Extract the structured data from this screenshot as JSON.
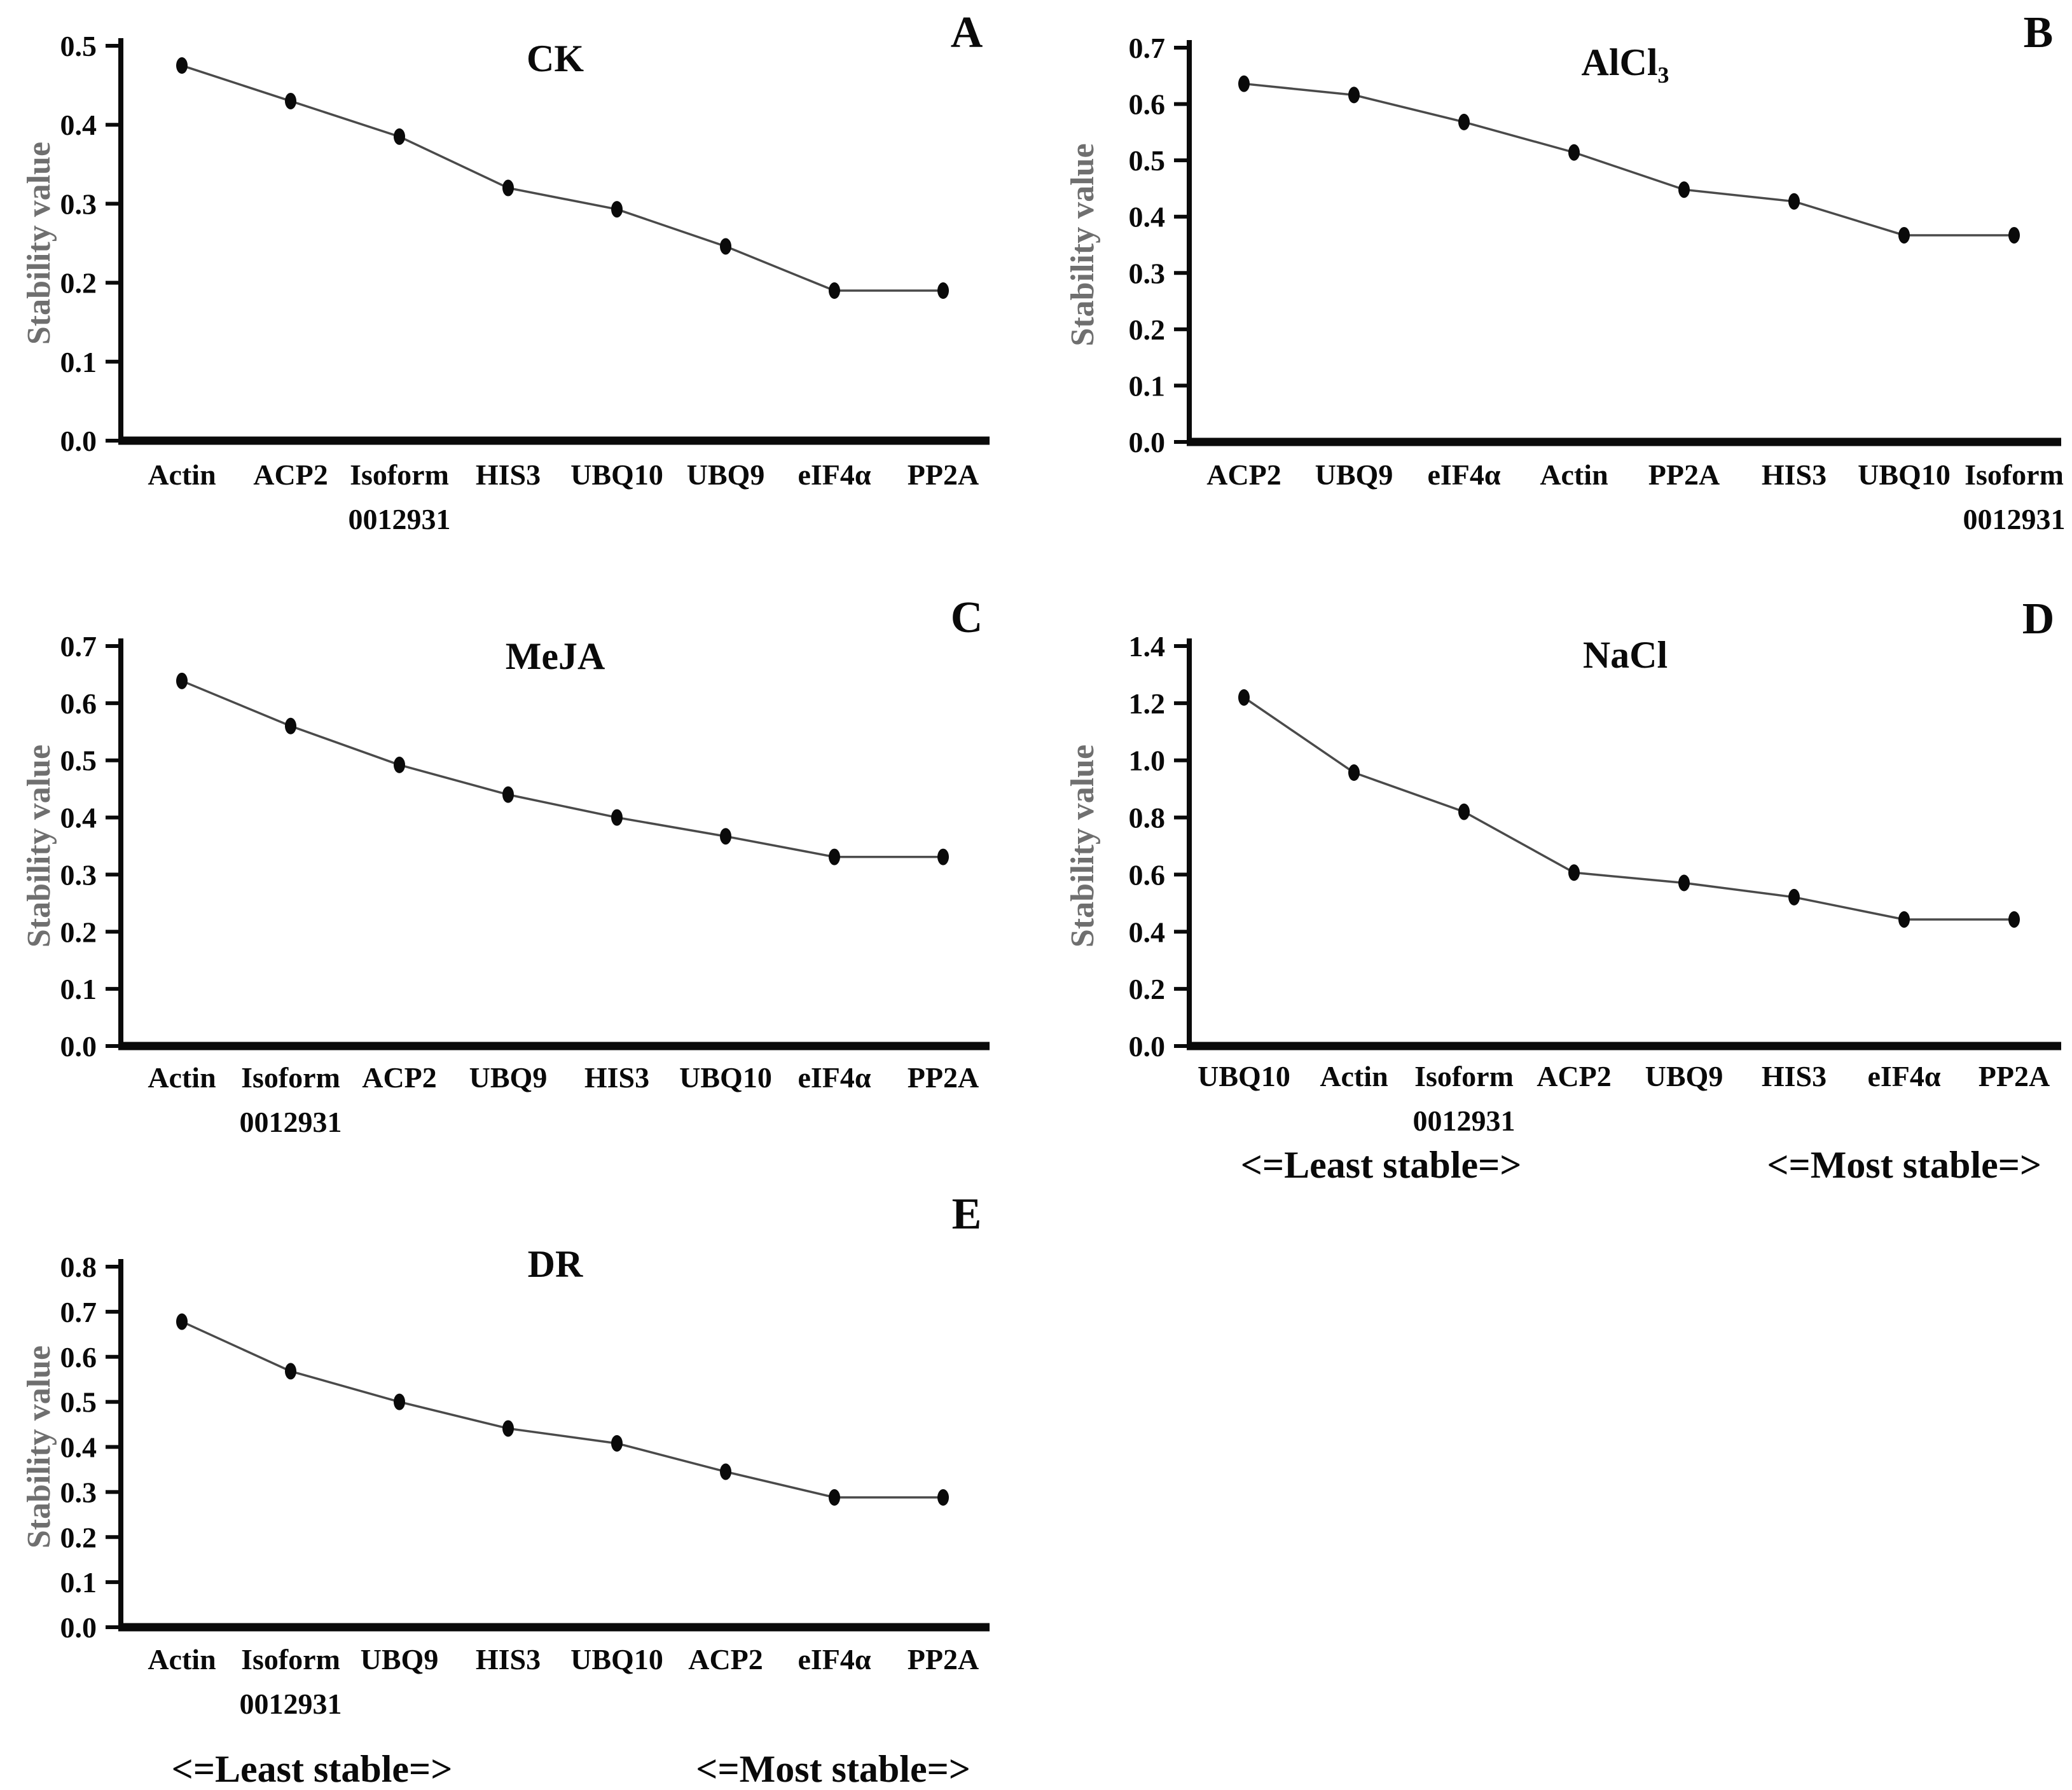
{
  "figure": {
    "ylabel": "Stability value",
    "footer_left": "<=Least stable=>",
    "footer_right": "<=Most stable=>"
  },
  "colors": {
    "background": "#ffffff",
    "axis": "#0a0a0a",
    "line": "#4a4a4a",
    "point": "#0a0a0a",
    "ylabel_text": "#6f6f6f",
    "text": "#0a0a0a"
  },
  "chart_data": [
    {
      "type": "line",
      "panel": "A",
      "title": "CK",
      "ylabel": "Stability value",
      "xlabel": "",
      "ylim": [
        0,
        0.5
      ],
      "ytick_step": 0.1,
      "grid": false,
      "legend": "none",
      "categories": [
        "Actin",
        "ACP2",
        "Isoform 0012931",
        "HIS3",
        "UBQ10",
        "UBQ9",
        "eIF4α",
        "PP2A"
      ],
      "values": [
        0.475,
        0.43,
        0.385,
        0.32,
        0.293,
        0.246,
        0.19,
        0.19
      ],
      "show_stability_footer": false
    },
    {
      "type": "line",
      "panel": "B",
      "title": "AlCl₃",
      "ylabel": "Stability value",
      "xlabel": "",
      "ylim": [
        0,
        0.7
      ],
      "ytick_step": 0.1,
      "grid": false,
      "legend": "none",
      "categories": [
        "ACP2",
        "UBQ9",
        "eIF4α",
        "Actin",
        "PP2A",
        "HIS3",
        "UBQ10",
        "Isoform 0012931"
      ],
      "values": [
        0.636,
        0.616,
        0.568,
        0.514,
        0.448,
        0.427,
        0.367,
        0.367
      ],
      "show_stability_footer": false
    },
    {
      "type": "line",
      "panel": "C",
      "title": "MeJA",
      "ylabel": "Stability value",
      "xlabel": "",
      "ylim": [
        0,
        0.7
      ],
      "ytick_step": 0.1,
      "grid": false,
      "legend": "none",
      "categories": [
        "Actin",
        "Isoform 0012931",
        "ACP2",
        "UBQ9",
        "HIS3",
        "UBQ10",
        "eIF4α",
        "PP2A"
      ],
      "values": [
        0.639,
        0.56,
        0.492,
        0.44,
        0.4,
        0.367,
        0.331,
        0.331
      ],
      "show_stability_footer": false
    },
    {
      "type": "line",
      "panel": "D",
      "title": "NaCl",
      "ylabel": "Stability value",
      "xlabel": "",
      "ylim": [
        0,
        1.4
      ],
      "ytick_step": 0.2,
      "grid": false,
      "legend": "none",
      "categories": [
        "UBQ10",
        "Actin",
        "Isoform 0012931",
        "ACP2",
        "UBQ9",
        "HIS3",
        "eIF4α",
        "PP2A"
      ],
      "values": [
        1.22,
        0.957,
        0.82,
        0.607,
        0.571,
        0.521,
        0.443,
        0.443
      ],
      "show_stability_footer": true
    },
    {
      "type": "line",
      "panel": "E",
      "title": "DR",
      "ylabel": "Stability value",
      "xlabel": "",
      "ylim": [
        0,
        0.8
      ],
      "ytick_step": 0.1,
      "grid": false,
      "legend": "none",
      "categories": [
        "Actin",
        "Isoform 0012931",
        "UBQ9",
        "HIS3",
        "UBQ10",
        "ACP2",
        "eIF4α",
        "PP2A"
      ],
      "values": [
        0.678,
        0.568,
        0.5,
        0.441,
        0.408,
        0.345,
        0.288,
        0.288
      ],
      "show_stability_footer": true
    }
  ]
}
